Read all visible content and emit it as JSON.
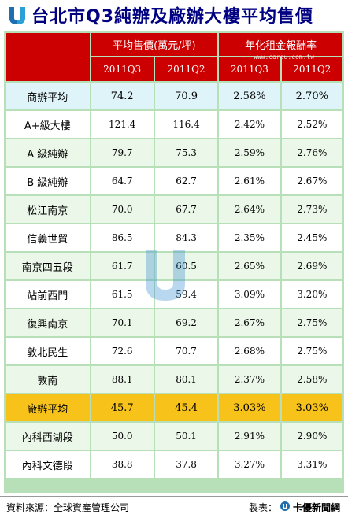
{
  "title": "台北市Q3純辦及廠辦大樓平均售價",
  "watermark_site": "www.cardu.com.tw",
  "header": {
    "group1": "平均售價(萬元/坪)",
    "group2": "年化租金報酬率",
    "sub": [
      "2011Q3",
      "2011Q2",
      "2011Q3",
      "2011Q2"
    ]
  },
  "rows": [
    {
      "label": "商辦平均",
      "v": [
        "74.2",
        "70.9",
        "2.58%",
        "2.70%"
      ]
    },
    {
      "label": "A+級大樓",
      "v": [
        "121.4",
        "116.4",
        "2.42%",
        "2.52%"
      ]
    },
    {
      "label": "A 級純辦",
      "v": [
        "79.7",
        "75.3",
        "2.59%",
        "2.76%"
      ]
    },
    {
      "label": "B 級純辦",
      "v": [
        "64.7",
        "62.7",
        "2.61%",
        "2.67%"
      ]
    },
    {
      "label": "松江南京",
      "v": [
        "70.0",
        "67.7",
        "2.64%",
        "2.73%"
      ]
    },
    {
      "label": "信義世貿",
      "v": [
        "86.5",
        "84.3",
        "2.35%",
        "2.45%"
      ]
    },
    {
      "label": "南京四五段",
      "v": [
        "61.7",
        "60.5",
        "2.65%",
        "2.69%"
      ]
    },
    {
      "label": "站前西門",
      "v": [
        "61.5",
        "59.4",
        "3.09%",
        "3.20%"
      ]
    },
    {
      "label": "復興南京",
      "v": [
        "70.1",
        "69.2",
        "2.67%",
        "2.75%"
      ]
    },
    {
      "label": "敦北民生",
      "v": [
        "72.6",
        "70.7",
        "2.68%",
        "2.75%"
      ]
    },
    {
      "label": "敦南",
      "v": [
        "88.1",
        "80.1",
        "2.37%",
        "2.58%"
      ]
    },
    {
      "label": "廠辦平均",
      "v": [
        "45.7",
        "45.4",
        "3.03%",
        "3.03%"
      ]
    },
    {
      "label": "內科西湖段",
      "v": [
        "50.0",
        "50.1",
        "2.91%",
        "2.90%"
      ]
    },
    {
      "label": "內科文德段",
      "v": [
        "38.8",
        "37.8",
        "3.27%",
        "3.31%"
      ]
    }
  ],
  "footer": {
    "source": "資料來源：全球資產管理公司",
    "maker_label": "製表：",
    "brand": "卡優新聞網"
  },
  "colors": {
    "header": "#cc0000",
    "highlight_blue": "#dff4f8",
    "highlight_yellow": "#f7c21a",
    "border": "#b8e0b8"
  }
}
